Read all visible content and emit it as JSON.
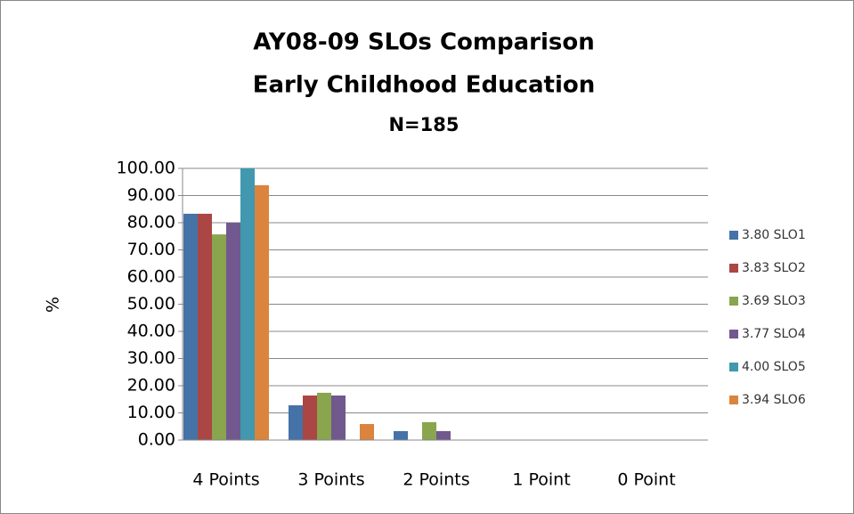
{
  "chart_data": {
    "type": "bar",
    "title_lines": [
      "AY08-09 SLOs Comparison",
      "Early Childhood Education",
      "N=185"
    ],
    "y_label": "%",
    "categories": [
      "4 Points",
      "3 Points",
      "2 Points",
      "1 Point",
      "0 Point"
    ],
    "series": [
      {
        "name": "3.80 SLO1",
        "color": "#4572a7",
        "values": [
          83.3,
          12.8,
          3.3,
          0,
          0
        ]
      },
      {
        "name": "3.83 SLO2",
        "color": "#aa4643",
        "values": [
          83.3,
          16.4,
          0,
          0,
          0
        ]
      },
      {
        "name": "3.69 SLO3",
        "color": "#89a54e",
        "values": [
          75.7,
          17.4,
          6.6,
          0,
          0
        ]
      },
      {
        "name": "3.77 SLO4",
        "color": "#71588f",
        "values": [
          80,
          16.4,
          3.3,
          0,
          0
        ]
      },
      {
        "name": "4.00 SLO5",
        "color": "#4198af",
        "values": [
          100,
          0,
          0,
          0,
          0
        ]
      },
      {
        "name": "3.94 SLO6",
        "color": "#db843d",
        "values": [
          93.8,
          5.9,
          0,
          0,
          0
        ]
      }
    ],
    "ylim": [
      0,
      100
    ],
    "yticks": [
      {
        "value": 0,
        "label": "0.00"
      },
      {
        "value": 10,
        "label": "10.00"
      },
      {
        "value": 20,
        "label": "20.00"
      },
      {
        "value": 30,
        "label": "30.00"
      },
      {
        "value": 40,
        "label": "40.00"
      },
      {
        "value": 50,
        "label": "50.00"
      },
      {
        "value": 60,
        "label": "60.00"
      },
      {
        "value": 70,
        "label": "70.00"
      },
      {
        "value": 80,
        "label": "80.00"
      },
      {
        "value": 90,
        "label": "90.00"
      },
      {
        "value": 100,
        "label": "100.00"
      }
    ],
    "grid": true,
    "legend": "right"
  }
}
